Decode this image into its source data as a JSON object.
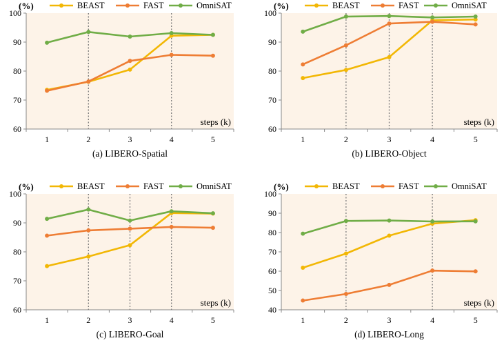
{
  "colors": {
    "BEAST": "#f2b705",
    "FAST": "#ee7d34",
    "OmniSAT": "#70ad47",
    "plot_bg": "#fdf3e8",
    "axis": "#888888",
    "vline": "#7a7a7a",
    "text": "#000000"
  },
  "chart_data": [
    {
      "type": "line",
      "title": "(a) LIBERO-Spatial",
      "ylabel": "(%)",
      "xlabel": "steps (k)",
      "x": [
        1,
        2,
        3,
        4,
        5
      ],
      "ylim": [
        60,
        100
      ],
      "yticks": [
        60,
        70,
        80,
        90,
        100
      ],
      "vlines": [
        2,
        4
      ],
      "legend_position": "top",
      "series": [
        {
          "name": "BEAST",
          "values": [
            73.5,
            76.3,
            80.5,
            92.2,
            92.5
          ]
        },
        {
          "name": "FAST",
          "values": [
            73.2,
            76.4,
            83.5,
            85.6,
            85.3
          ]
        },
        {
          "name": "OmniSAT",
          "values": [
            89.8,
            93.5,
            91.9,
            93.1,
            92.5
          ]
        }
      ]
    },
    {
      "type": "line",
      "title": "(b) LIBERO-Object",
      "ylabel": "(%)",
      "xlabel": "steps (k)",
      "x": [
        1,
        2,
        3,
        4,
        5
      ],
      "ylim": [
        60,
        100
      ],
      "yticks": [
        60,
        70,
        80,
        90,
        100
      ],
      "vlines": [
        2,
        3,
        4
      ],
      "legend_position": "top",
      "series": [
        {
          "name": "BEAST",
          "values": [
            77.6,
            80.4,
            84.8,
            97.5,
            97.8
          ]
        },
        {
          "name": "FAST",
          "values": [
            82.3,
            88.9,
            96.4,
            97.0,
            96.1
          ]
        },
        {
          "name": "OmniSAT",
          "values": [
            93.6,
            98.8,
            99.0,
            98.5,
            98.8
          ]
        }
      ]
    },
    {
      "type": "line",
      "title": "(c) LIBERO-Goal",
      "ylabel": "(%)",
      "xlabel": "steps (k)",
      "x": [
        1,
        2,
        3,
        4,
        5
      ],
      "ylim": [
        60,
        100
      ],
      "yticks": [
        60,
        70,
        80,
        90,
        100
      ],
      "vlines": [
        2,
        3,
        4
      ],
      "legend_position": "top",
      "series": [
        {
          "name": "BEAST",
          "values": [
            75.1,
            78.4,
            82.3,
            93.4,
            93.2
          ]
        },
        {
          "name": "FAST",
          "values": [
            85.6,
            87.4,
            88.0,
            88.6,
            88.3
          ]
        },
        {
          "name": "OmniSAT",
          "values": [
            91.4,
            94.6,
            90.8,
            94.0,
            93.3
          ]
        }
      ]
    },
    {
      "type": "line",
      "title": "(d) LIBERO-Long",
      "ylabel": "(%)",
      "xlabel": "steps (k)",
      "x": [
        1,
        2,
        3,
        4,
        5
      ],
      "ylim": [
        40,
        100
      ],
      "yticks": [
        40,
        50,
        60,
        70,
        80,
        90,
        100
      ],
      "vlines": [
        2,
        4
      ],
      "legend_position": "top",
      "series": [
        {
          "name": "BEAST",
          "values": [
            61.8,
            69.1,
            78.4,
            84.6,
            86.4
          ]
        },
        {
          "name": "FAST",
          "values": [
            44.8,
            48.2,
            52.9,
            60.3,
            59.9
          ]
        },
        {
          "name": "OmniSAT",
          "values": [
            79.4,
            86.0,
            86.2,
            85.7,
            85.8
          ]
        }
      ]
    }
  ]
}
